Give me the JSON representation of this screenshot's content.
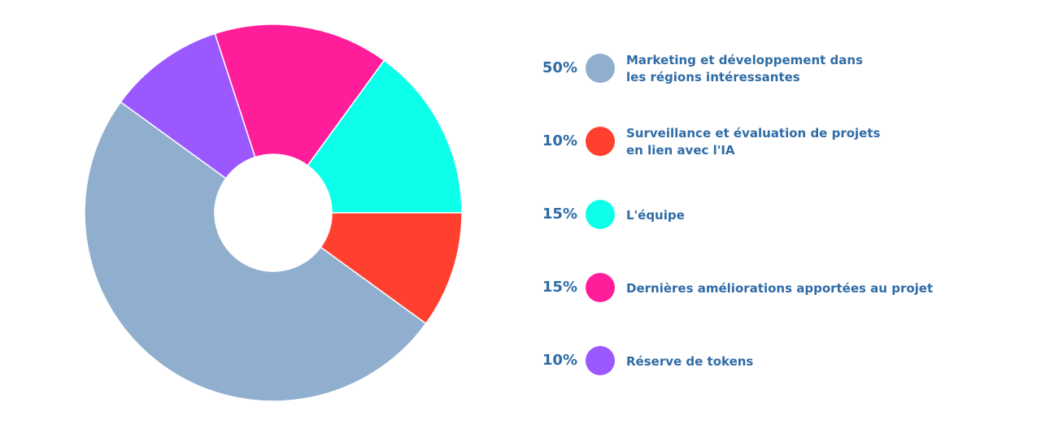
{
  "chart_data": {
    "type": "pie",
    "donut": true,
    "title": "",
    "series": [
      {
        "name": "",
        "slices": [
          {
            "label": "Marketing et développement dans\nles régions intéressantes",
            "pct_label": "50%",
            "value": 50,
            "color": "#90afcf"
          },
          {
            "label": "Surveillance et évaluation de projets\nen lien avec l'IA",
            "pct_label": "10%",
            "value": 10,
            "color": "#ff402e"
          },
          {
            "label": "L'équipe",
            "pct_label": "15%",
            "value": 15,
            "color": "#0cffe8"
          },
          {
            "label": "Dernières améliorations apportées au projet",
            "pct_label": "15%",
            "value": 15,
            "color": "#ff1d9a"
          },
          {
            "label": "Réserve de tokens",
            "pct_label": "10%",
            "value": 10,
            "color": "#9b58ff"
          }
        ]
      }
    ],
    "legend_position": "right"
  },
  "legend_text_color": "#2f6ca6"
}
